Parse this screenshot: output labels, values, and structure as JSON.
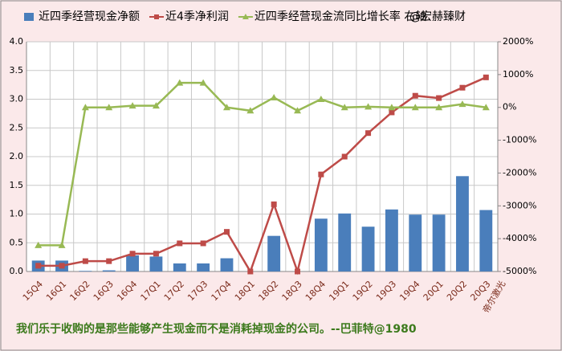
{
  "chart_data": {
    "type": "combo",
    "categories": [
      "15Q4",
      "16Q1",
      "16Q2",
      "16Q3",
      "16Q4",
      "17Q1",
      "17Q2",
      "17Q3",
      "17Q4",
      "18Q1",
      "18Q2",
      "18Q3",
      "18Q4",
      "19Q1",
      "19Q2",
      "19Q3",
      "19Q4",
      "20Q1",
      "20Q2",
      "20Q3"
    ],
    "series": [
      {
        "name": "近四季经营现金净额",
        "type": "bar",
        "color": "#4a7ebb",
        "values": [
          0.19,
          0.19,
          0.01,
          0.02,
          0.28,
          0.26,
          0.14,
          0.14,
          0.23,
          0,
          0.62,
          0,
          0.92,
          1.01,
          0.78,
          1.08,
          0.99,
          0.99,
          1.66,
          1.07
        ]
      },
      {
        "name": "近4季净利润",
        "type": "line",
        "marker": "square",
        "color": "#be4b48",
        "values": [
          0.1,
          0.1,
          0.18,
          0.18,
          0.31,
          0.31,
          0.49,
          0.49,
          0.69,
          0,
          1.17,
          0,
          1.69,
          2.0,
          2.41,
          2.77,
          3.06,
          3.02,
          3.2,
          3.38
        ]
      },
      {
        "name": "近四季经营现金流同比增长率 右轴",
        "type": "line",
        "marker": "triangle",
        "color": "#98b954",
        "axis": "y2",
        "values": [
          -4200,
          -4200,
          0,
          0,
          50,
          50,
          750,
          750,
          0,
          -100,
          300,
          -100,
          250,
          0,
          20,
          0,
          0,
          0,
          100,
          0
        ]
      }
    ],
    "ylim": [
      0,
      4
    ],
    "yticks": [
      {
        "value": 0,
        "label": "0.0"
      },
      {
        "value": 0.5,
        "label": "0.5"
      },
      {
        "value": 1,
        "label": "1.0"
      },
      {
        "value": 1.5,
        "label": "1.5"
      },
      {
        "value": 2,
        "label": "2.0"
      },
      {
        "value": 2.5,
        "label": "2.5"
      },
      {
        "value": 3,
        "label": "3.0"
      },
      {
        "value": 3.5,
        "label": "3.5"
      },
      {
        "value": 4,
        "label": "4.0"
      }
    ],
    "y2lim": [
      -5000,
      2000
    ],
    "y2ticks": [
      {
        "value": -5000,
        "label": "-5000%"
      },
      {
        "value": -4000,
        "label": "-4000%"
      },
      {
        "value": -3000,
        "label": "-3000%"
      },
      {
        "value": -2000,
        "label": "-2000%"
      },
      {
        "value": -1000,
        "label": "-1000%"
      },
      {
        "value": 0,
        "label": "0%"
      },
      {
        "value": 1000,
        "label": "1000%"
      },
      {
        "value": 2000,
        "label": "2000%"
      }
    ],
    "grid": true,
    "annotations": [
      "@宏赫臻财",
      "帝尔激光"
    ],
    "footer": "我们乐于收购的是那些能够产生现金而不是消耗掉现金的公司。--巴菲特@1980"
  }
}
